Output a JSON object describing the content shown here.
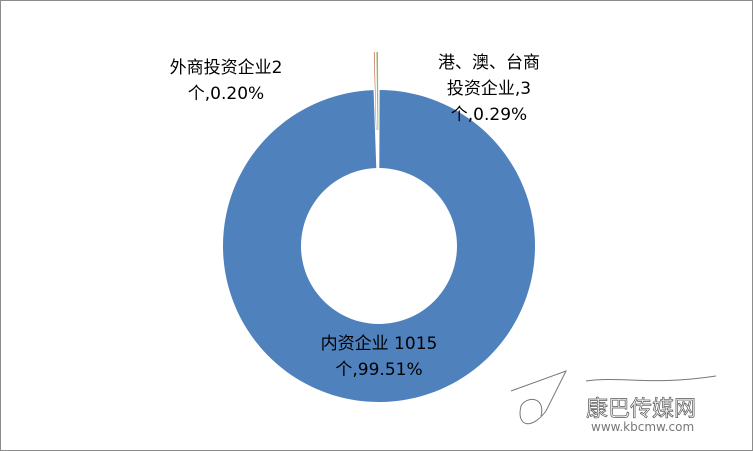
{
  "chart_data": {
    "type": "pie",
    "donut": true,
    "start_angle_deg": 0,
    "direction": "clockwise",
    "slices": [
      {
        "name": "内资企业",
        "value": 1015,
        "percent": 99.51,
        "label_lines": [
          "内资企业 1015",
          "个,99.51%"
        ],
        "color": "#4F81BD",
        "exploded": false
      },
      {
        "name": "外商投资企业",
        "value": 2,
        "percent": 0.2,
        "label_lines": [
          "外商投资企业2",
          "个,0.20%"
        ],
        "color": "#C0504D",
        "exploded": true
      },
      {
        "name": "港、澳、台商投资企业",
        "value": 3,
        "percent": 0.29,
        "label_lines": [
          "港、澳、台商",
          "投资企业,3",
          "个,0.29%"
        ],
        "color": "#9BBB59",
        "exploded": true
      }
    ],
    "legend": "none"
  },
  "watermark": {
    "name": "康巴传媒网",
    "url": "www.kbcmw.com"
  }
}
